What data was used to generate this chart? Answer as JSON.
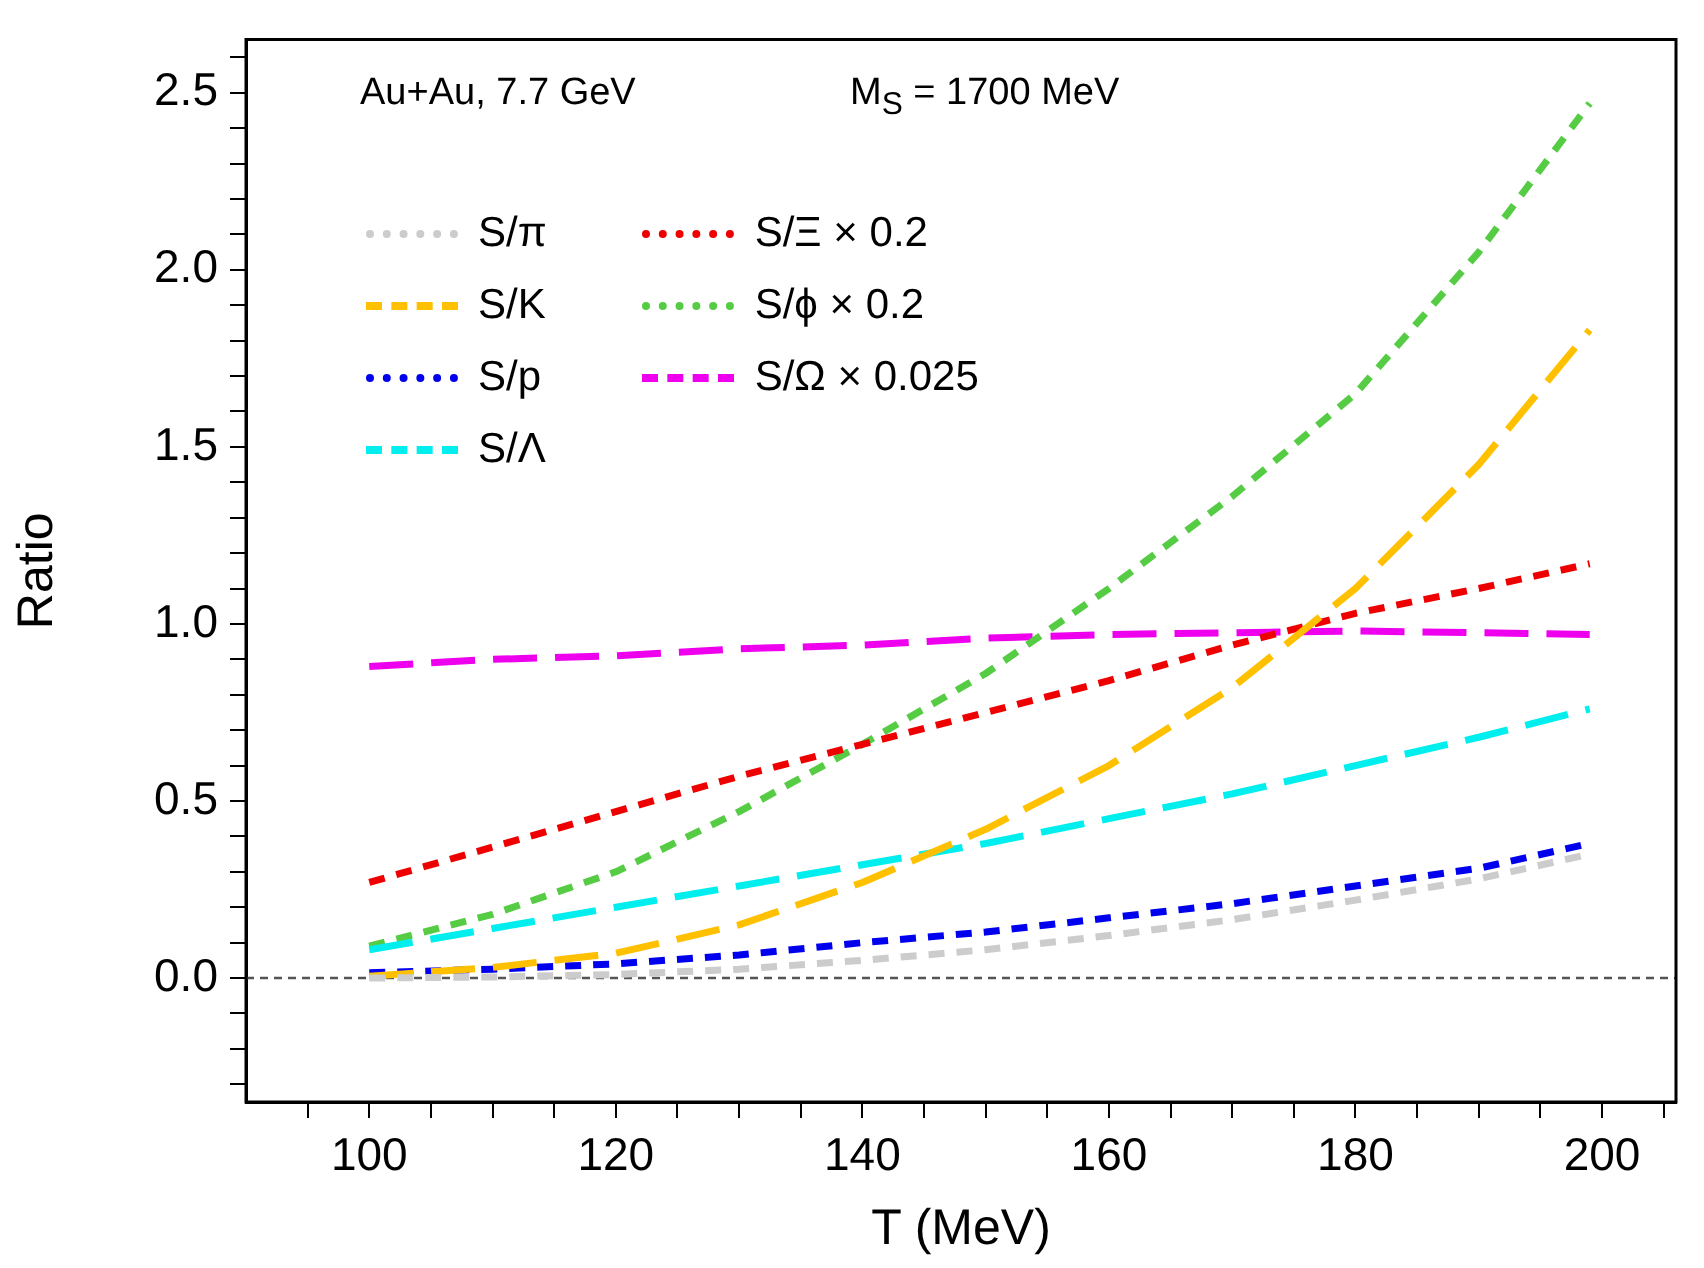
{
  "chart_data": {
    "type": "line",
    "xlabel": "T (MeV)",
    "ylabel": "Ratio",
    "annotations": [
      "Au+Au, 7.7 GeV",
      "M$_{S}$ = 1700 MeV"
    ],
    "x": [
      100,
      110,
      120,
      130,
      140,
      150,
      160,
      170,
      180,
      190,
      199
    ],
    "series": [
      {
        "name": "S/π",
        "color": "#cccccc",
        "line_style": "dotted",
        "values": [
          0.0,
          0.003,
          0.01,
          0.025,
          0.05,
          0.08,
          0.12,
          0.165,
          0.22,
          0.28,
          0.35
        ]
      },
      {
        "name": "S/K",
        "color": "#ffc000",
        "line_style": "dashed",
        "values": [
          0.005,
          0.03,
          0.07,
          0.15,
          0.27,
          0.42,
          0.6,
          0.82,
          1.1,
          1.45,
          1.83
        ]
      },
      {
        "name": "S/p",
        "color": "#0000ee",
        "line_style": "dotted",
        "values": [
          0.015,
          0.025,
          0.04,
          0.065,
          0.1,
          0.13,
          0.17,
          0.21,
          0.26,
          0.31,
          0.38
        ]
      },
      {
        "name": "S/Λ",
        "color": "#00eeee",
        "line_style": "dashed",
        "values": [
          0.08,
          0.14,
          0.2,
          0.26,
          0.32,
          0.38,
          0.45,
          0.52,
          0.6,
          0.68,
          0.76
        ]
      },
      {
        "name": "S/Ξ × 0.2",
        "color": "#ee0000",
        "line_style": "dotted",
        "values": [
          0.27,
          0.37,
          0.47,
          0.57,
          0.66,
          0.75,
          0.84,
          0.94,
          1.03,
          1.1,
          1.17
        ]
      },
      {
        "name": "S/ϕ × 0.2",
        "color": "#55cc44",
        "line_style": "dotted",
        "values": [
          0.09,
          0.18,
          0.3,
          0.47,
          0.66,
          0.86,
          1.1,
          1.36,
          1.65,
          2.05,
          2.47
        ]
      },
      {
        "name": "S/Ω × 0.025",
        "color": "#ee00ee",
        "line_style": "dashed",
        "values": [
          0.88,
          0.9,
          0.91,
          0.93,
          0.94,
          0.96,
          0.97,
          0.975,
          0.98,
          0.975,
          0.97
        ]
      }
    ],
    "xlim": [
      90,
      206
    ],
    "xticks": [
      {
        "value": 95,
        "label": null
      },
      100,
      {
        "value": 105,
        "label": null
      },
      {
        "value": 110,
        "label": null
      },
      {
        "value": 115,
        "label": null
      },
      120,
      {
        "value": 125,
        "label": null
      },
      {
        "value": 130,
        "label": null
      },
      {
        "value": 135,
        "label": null
      },
      140,
      {
        "value": 145,
        "label": null
      },
      {
        "value": 150,
        "label": null
      },
      {
        "value": 155,
        "label": null
      },
      160,
      {
        "value": 165,
        "label": null
      },
      {
        "value": 170,
        "label": null
      },
      {
        "value": 175,
        "label": null
      },
      180,
      {
        "value": 185,
        "label": null
      },
      {
        "value": 190,
        "label": null
      },
      {
        "value": 195,
        "label": null
      },
      200,
      {
        "value": 205,
        "label": null
      }
    ],
    "ylim": [
      -0.35,
      2.65
    ],
    "yticks": [
      {
        "value": -0.3,
        "label": null
      },
      {
        "value": -0.2,
        "label": null
      },
      {
        "value": -0.1,
        "label": null
      },
      {
        "value": 0,
        "label": "0.0"
      },
      {
        "value": 0.1,
        "label": null
      },
      {
        "value": 0.2,
        "label": null
      },
      {
        "value": 0.3,
        "label": null
      },
      {
        "value": 0.4,
        "label": null
      },
      {
        "value": 0.5,
        "label": "0.5"
      },
      {
        "value": 0.6,
        "label": null
      },
      {
        "value": 0.7,
        "label": null
      },
      {
        "value": 0.8,
        "label": null
      },
      {
        "value": 0.9,
        "label": null
      },
      {
        "value": 1,
        "label": "1.0"
      },
      {
        "value": 1.1,
        "label": null
      },
      {
        "value": 1.2,
        "label": null
      },
      {
        "value": 1.3,
        "label": null
      },
      {
        "value": 1.4,
        "label": null
      },
      {
        "value": 1.5,
        "label": "1.5"
      },
      {
        "value": 1.6,
        "label": null
      },
      {
        "value": 1.7,
        "label": null
      },
      {
        "value": 1.8,
        "label": null
      },
      {
        "value": 1.9,
        "label": null
      },
      {
        "value": 2,
        "label": "2.0"
      },
      {
        "value": 2.1,
        "label": null
      },
      {
        "value": 2.2,
        "label": null
      },
      {
        "value": 2.3,
        "label": null
      },
      {
        "value": 2.4,
        "label": null
      },
      {
        "value": 2.5,
        "label": "2.5"
      },
      {
        "value": 2.6,
        "label": null
      }
    ],
    "ref_lines": [
      {
        "axis": "y",
        "value": 0,
        "color": "#555555",
        "line_style": "dotted"
      }
    ],
    "grid": false,
    "legend": "top left",
    "marker": "none"
  }
}
